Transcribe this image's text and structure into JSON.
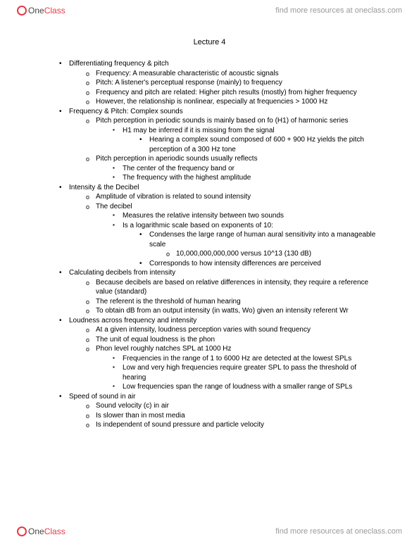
{
  "brand": {
    "one": "One",
    "class": "Class"
  },
  "header_link": "find more resources at oneclass.com",
  "footer_link": "find more resources at oneclass.com",
  "title": "Lecture 4",
  "outline": [
    {
      "lvl": 1,
      "b": "dot",
      "t": "Differentiating frequency & pitch"
    },
    {
      "lvl": 2,
      "b": "o",
      "t": "Frequency: A measurable characteristic of acoustic signals"
    },
    {
      "lvl": 2,
      "b": "o",
      "t": "Pitch: A listener's perceptual response (mainly) to frequency"
    },
    {
      "lvl": 2,
      "b": "o",
      "t": "Frequency and pitch are related: Higher pitch results (mostly) from higher frequency"
    },
    {
      "lvl": 2,
      "b": "o",
      "t": "However, the relationship is nonlinear, especially at frequencies > 1000 Hz"
    },
    {
      "lvl": 1,
      "b": "dot",
      "t": "Frequency & Pitch: Complex sounds"
    },
    {
      "lvl": 2,
      "b": "o",
      "t": "Pitch perception in periodic sounds is mainly based on fo (H1) of harmonic series"
    },
    {
      "lvl": 3,
      "b": "sq",
      "t": "H1 may be inferred if it is missing from the signal"
    },
    {
      "lvl": 4,
      "b": "bullet2",
      "t": "Hearing a complex sound composed of 600 + 900 Hz yields the pitch perception of a 300 Hz tone"
    },
    {
      "lvl": 2,
      "b": "o",
      "t": "Pitch perception in aperiodic sounds usually reflects"
    },
    {
      "lvl": 3,
      "b": "sq",
      "t": "The center of the frequency band or"
    },
    {
      "lvl": 3,
      "b": "sq",
      "t": "The frequency with the highest amplitude"
    },
    {
      "lvl": 1,
      "b": "dot",
      "t": "Intensity & the Decibel"
    },
    {
      "lvl": 2,
      "b": "o",
      "t": "Amplitude of vibration is related to sound intensity"
    },
    {
      "lvl": 2,
      "b": "o",
      "t": "The decibel"
    },
    {
      "lvl": 3,
      "b": "sq",
      "t": "Measures the relative intensity between two sounds"
    },
    {
      "lvl": 3,
      "b": "sq",
      "t": "Is a logarithmic scale based on exponents of 10:"
    },
    {
      "lvl": 4,
      "b": "bullet2",
      "t": "Condenses the large range of human aural sensitivity into a manageable scale"
    },
    {
      "lvl": 5,
      "b": "o2",
      "t": "10,000,000,000,000 versus 10^13 (130 dB)"
    },
    {
      "lvl": 4,
      "b": "bullet2",
      "t": "Corresponds to how intensity differences are perceived"
    },
    {
      "lvl": 1,
      "b": "dot",
      "t": "Calculating decibels from intensity"
    },
    {
      "lvl": 2,
      "b": "o",
      "t": "Because decibels are based on relative differences in intensity, they require a reference value (standard)"
    },
    {
      "lvl": 2,
      "b": "o",
      "t": "The referent is the threshold of human hearing"
    },
    {
      "lvl": 2,
      "b": "o",
      "t": "To obtain dB from an output intensity (in watts, Wo) given an intensity referent Wr"
    },
    {
      "lvl": 1,
      "b": "dot",
      "t": "Loudness across frequency and intensity"
    },
    {
      "lvl": 2,
      "b": "o",
      "t": "At a given intensity, loudness perception varies with sound frequency"
    },
    {
      "lvl": 2,
      "b": "o",
      "t": "The unit of equal loudness is the phon"
    },
    {
      "lvl": 2,
      "b": "o",
      "t": "Phon level roughly natches SPL at 1000 Hz"
    },
    {
      "lvl": 3,
      "b": "sq",
      "t": "Frequencies in the range of 1 to 6000 Hz are detected at the lowest SPLs"
    },
    {
      "lvl": 3,
      "b": "sq",
      "t": "Low and very high frequencies require greater SPL to pass the threshold of hearing"
    },
    {
      "lvl": 3,
      "b": "sq",
      "t": "Low frequencies span the range of loudness with a smaller range of SPLs"
    },
    {
      "lvl": 1,
      "b": "dot",
      "t": "Speed of sound in air"
    },
    {
      "lvl": 2,
      "b": "o",
      "t": "Sound velocity (c) in air"
    },
    {
      "lvl": 2,
      "b": "o",
      "t": "Is slower than in most media"
    },
    {
      "lvl": 2,
      "b": "o",
      "t": "Is independent of sound pressure and particle velocity"
    }
  ]
}
